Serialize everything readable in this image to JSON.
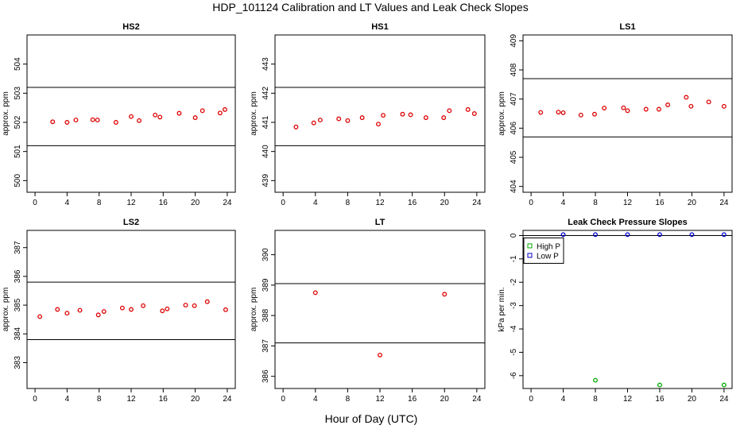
{
  "figure": {
    "title": "HDP_101124  Calibration and LT Values and Leak Check Slopes",
    "xlabel": "Hour of Day (UTC)"
  },
  "chart_data": [
    {
      "type": "scatter",
      "title": "HS2",
      "ylabel": "approx. ppm",
      "xlim": [
        -1,
        25
      ],
      "ylim": [
        499.6,
        505.0
      ],
      "xticks": [
        0,
        4,
        8,
        12,
        16,
        20,
        24
      ],
      "yticks": [
        500,
        501,
        502,
        503,
        504
      ],
      "hlines": [
        501.2,
        503.2
      ],
      "color": "#dd0000",
      "x": [
        2.2,
        4.0,
        5.1,
        7.2,
        7.8,
        10.1,
        12.0,
        13.0,
        15.0,
        15.6,
        18.0,
        20.0,
        20.9,
        23.1,
        23.7
      ],
      "y": [
        502.02,
        502.0,
        502.08,
        502.09,
        502.08,
        502.0,
        502.2,
        502.06,
        502.25,
        502.18,
        502.31,
        502.16,
        502.4,
        502.32,
        502.44
      ]
    },
    {
      "type": "scatter",
      "title": "HS1",
      "ylabel": "approx. ppm",
      "xlim": [
        -1,
        25
      ],
      "ylim": [
        438.6,
        444.0
      ],
      "xticks": [
        0,
        4,
        8,
        12,
        16,
        20,
        24
      ],
      "yticks": [
        439,
        440,
        441,
        442,
        443
      ],
      "hlines": [
        440.2,
        442.2
      ],
      "color": "#dd0000",
      "x": [
        1.6,
        3.8,
        4.6,
        6.9,
        8.0,
        9.8,
        11.8,
        12.4,
        14.8,
        15.8,
        17.7,
        19.9,
        20.6,
        22.9,
        23.7
      ],
      "y": [
        440.84,
        440.98,
        441.08,
        441.12,
        441.06,
        441.16,
        440.94,
        441.24,
        441.28,
        441.26,
        441.16,
        441.16,
        441.4,
        441.44,
        441.3
      ]
    },
    {
      "type": "scatter",
      "title": "LS1",
      "ylabel": "approx. ppm",
      "xlim": [
        -1,
        25
      ],
      "ylim": [
        403.8,
        409.2
      ],
      "xticks": [
        0,
        4,
        8,
        12,
        16,
        20,
        24
      ],
      "yticks": [
        404,
        405,
        406,
        407,
        408,
        409
      ],
      "hlines": [
        405.7,
        407.7
      ],
      "color": "#dd0000",
      "x": [
        1.2,
        3.4,
        4.0,
        6.2,
        7.9,
        9.1,
        11.5,
        12.0,
        14.3,
        15.9,
        17.0,
        19.3,
        19.9,
        22.1,
        24.0
      ],
      "y": [
        406.54,
        406.55,
        406.53,
        406.45,
        406.48,
        406.69,
        406.7,
        406.6,
        406.65,
        406.65,
        406.8,
        407.06,
        406.75,
        406.9,
        406.75
      ]
    },
    {
      "type": "scatter",
      "title": "LS2",
      "ylabel": "approx. ppm",
      "xlim": [
        -1,
        25
      ],
      "ylim": [
        382.1,
        387.6
      ],
      "xticks": [
        0,
        4,
        8,
        12,
        16,
        20,
        24
      ],
      "yticks": [
        383,
        384,
        385,
        386,
        387
      ],
      "hlines": [
        383.8,
        385.8
      ],
      "color": "#dd0000",
      "x": [
        0.6,
        2.8,
        4.0,
        5.6,
        7.9,
        8.6,
        10.9,
        12.0,
        13.5,
        15.9,
        16.5,
        18.8,
        19.9,
        21.5,
        23.8
      ],
      "y": [
        384.6,
        384.85,
        384.72,
        384.82,
        384.66,
        384.78,
        384.9,
        384.85,
        384.98,
        384.8,
        384.87,
        385.0,
        384.98,
        385.12,
        384.84
      ]
    },
    {
      "type": "scatter",
      "title": "LT",
      "ylabel": "approx. ppm",
      "xlim": [
        -1,
        25
      ],
      "ylim": [
        385.6,
        390.8
      ],
      "xticks": [
        0,
        4,
        8,
        12,
        16,
        20,
        24
      ],
      "yticks": [
        386,
        387,
        388,
        389,
        390
      ],
      "hlines": [
        387.1,
        389.05
      ],
      "color": "#dd0000",
      "x": [
        4.0,
        12.0,
        20.0
      ],
      "y": [
        388.75,
        386.7,
        388.7
      ]
    },
    {
      "type": "scatter",
      "title": "Leak Check Pressure Slopes",
      "ylabel": "kPa per min.",
      "xlim": [
        -1,
        25
      ],
      "ylim": [
        -6.55,
        0.22
      ],
      "xticks": [
        0,
        4,
        8,
        12,
        16,
        20,
        24
      ],
      "yticks": [
        0,
        -1,
        -2,
        -3,
        -4,
        -5,
        -6
      ],
      "hlines": [
        0
      ],
      "legend_loc": "top-left",
      "series": [
        {
          "name": "High P",
          "color": "#00aa00",
          "x": [
            8,
            16,
            24
          ],
          "y": [
            -6.2,
            -6.4,
            -6.4
          ]
        },
        {
          "name": "Low P",
          "color": "#0000cc",
          "x": [
            4,
            8,
            12,
            16,
            20,
            24
          ],
          "y": [
            0.04,
            0.04,
            0.04,
            0.04,
            0.04,
            0.04
          ]
        }
      ]
    }
  ]
}
